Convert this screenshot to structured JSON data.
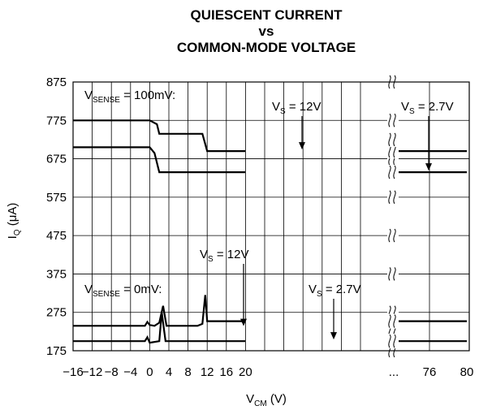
{
  "chart_data": {
    "type": "line",
    "title": [
      "QUIESCENT CURRENT",
      "vs",
      "COMMON-MODE VOLTAGE"
    ],
    "xlabel": {
      "main": "V",
      "sub": "CM",
      "unit": " (V)"
    },
    "ylabel": {
      "main": "I",
      "sub": "Q",
      "unit": " (μA)"
    },
    "ylim": [
      175,
      875
    ],
    "yticks": [
      "175",
      "275",
      "375",
      "475",
      "575",
      "675",
      "775",
      "875"
    ],
    "xticks": [
      "−16",
      "−12",
      "−8",
      "−4",
      "0",
      "4",
      "8",
      "12",
      "16",
      "20",
      "...",
      "76",
      "80"
    ],
    "x_axis_break": "...",
    "grid": true,
    "annotations": [
      {
        "id": "vsense100",
        "main": "V",
        "sub": "SENSE",
        "rest": " = 100mV:"
      },
      {
        "id": "vs12_top",
        "main": "V",
        "sub": "S",
        "rest": " = 12V"
      },
      {
        "id": "vs27_top",
        "main": "V",
        "sub": "S",
        "rest": " = 2.7V"
      },
      {
        "id": "vsense0",
        "main": "V",
        "sub": "SENSE",
        "rest": " = 0mV:"
      },
      {
        "id": "vs12_bot",
        "main": "V",
        "sub": "S",
        "rest": " = 12V"
      },
      {
        "id": "vs27_bot",
        "main": "V",
        "sub": "S",
        "rest": " = 2.7V"
      }
    ],
    "series": [
      {
        "condition": "VSENSE = 100mV, VS = 12V",
        "x": [
          -16,
          0,
          1.5,
          2,
          11,
          12,
          20,
          76,
          80
        ],
        "y": [
          775,
          775,
          765,
          740,
          740,
          695,
          695,
          695,
          695
        ]
      },
      {
        "condition": "VSENSE = 100mV, VS = 2.7V",
        "x": [
          -16,
          0,
          1,
          2,
          3,
          20,
          76,
          80
        ],
        "y": [
          705,
          705,
          690,
          640,
          640,
          640,
          640,
          640
        ]
      },
      {
        "condition": "VSENSE = 0mV, VS = 12V",
        "x": [
          -16,
          -1,
          -0.5,
          0,
          1,
          2,
          2.8,
          3.5,
          10,
          11,
          11.6,
          12,
          20,
          76,
          80
        ],
        "y": [
          240,
          240,
          250,
          242,
          240,
          248,
          292,
          240,
          240,
          245,
          320,
          252,
          252,
          252,
          252
        ]
      },
      {
        "condition": "VSENSE = 0mV, VS = 2.7V",
        "x": [
          -16,
          -1,
          -0.5,
          0,
          2,
          2.5,
          3.3,
          4.5,
          20,
          76,
          80
        ],
        "y": [
          200,
          200,
          210,
          196,
          200,
          275,
          200,
          200,
          200,
          200,
          200
        ]
      }
    ]
  }
}
